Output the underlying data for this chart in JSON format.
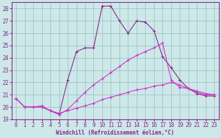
{
  "xlabel": "Windchill (Refroidissement éolien,°C)",
  "xlim": [
    -0.5,
    23.5
  ],
  "ylim": [
    19,
    28.5
  ],
  "yticks": [
    19,
    20,
    21,
    22,
    23,
    24,
    25,
    26,
    27,
    28
  ],
  "xticks": [
    0,
    1,
    2,
    3,
    4,
    5,
    6,
    7,
    8,
    9,
    10,
    11,
    12,
    13,
    14,
    15,
    16,
    17,
    18,
    19,
    20,
    21,
    22,
    23
  ],
  "bg_color": "#cce8e8",
  "grid_color": "#99bbbb",
  "line_color_dark": "#882288",
  "line_color_bright": "#cc33cc",
  "series_main": [
    20.7,
    20.0,
    20.0,
    20.0,
    19.7,
    19.4,
    22.2,
    24.5,
    24.8,
    24.8,
    28.2,
    28.2,
    27.0,
    26.0,
    27.0,
    26.9,
    26.2,
    24.1,
    23.2,
    22.2,
    21.5,
    21.1,
    20.9,
    20.9
  ],
  "series_mid": [
    20.7,
    20.0,
    20.0,
    20.0,
    19.7,
    19.4,
    19.8,
    20.5,
    21.2,
    21.8,
    22.3,
    22.8,
    23.3,
    23.8,
    24.2,
    24.5,
    24.8,
    25.2,
    22.2,
    21.6,
    21.5,
    21.3,
    21.1,
    21.0
  ],
  "series_flat": [
    20.7,
    20.0,
    20.0,
    20.1,
    19.7,
    19.5,
    19.7,
    19.9,
    20.1,
    20.3,
    20.6,
    20.8,
    21.0,
    21.2,
    21.4,
    21.5,
    21.7,
    21.8,
    22.0,
    21.8,
    21.5,
    21.2,
    21.0,
    21.0
  ]
}
